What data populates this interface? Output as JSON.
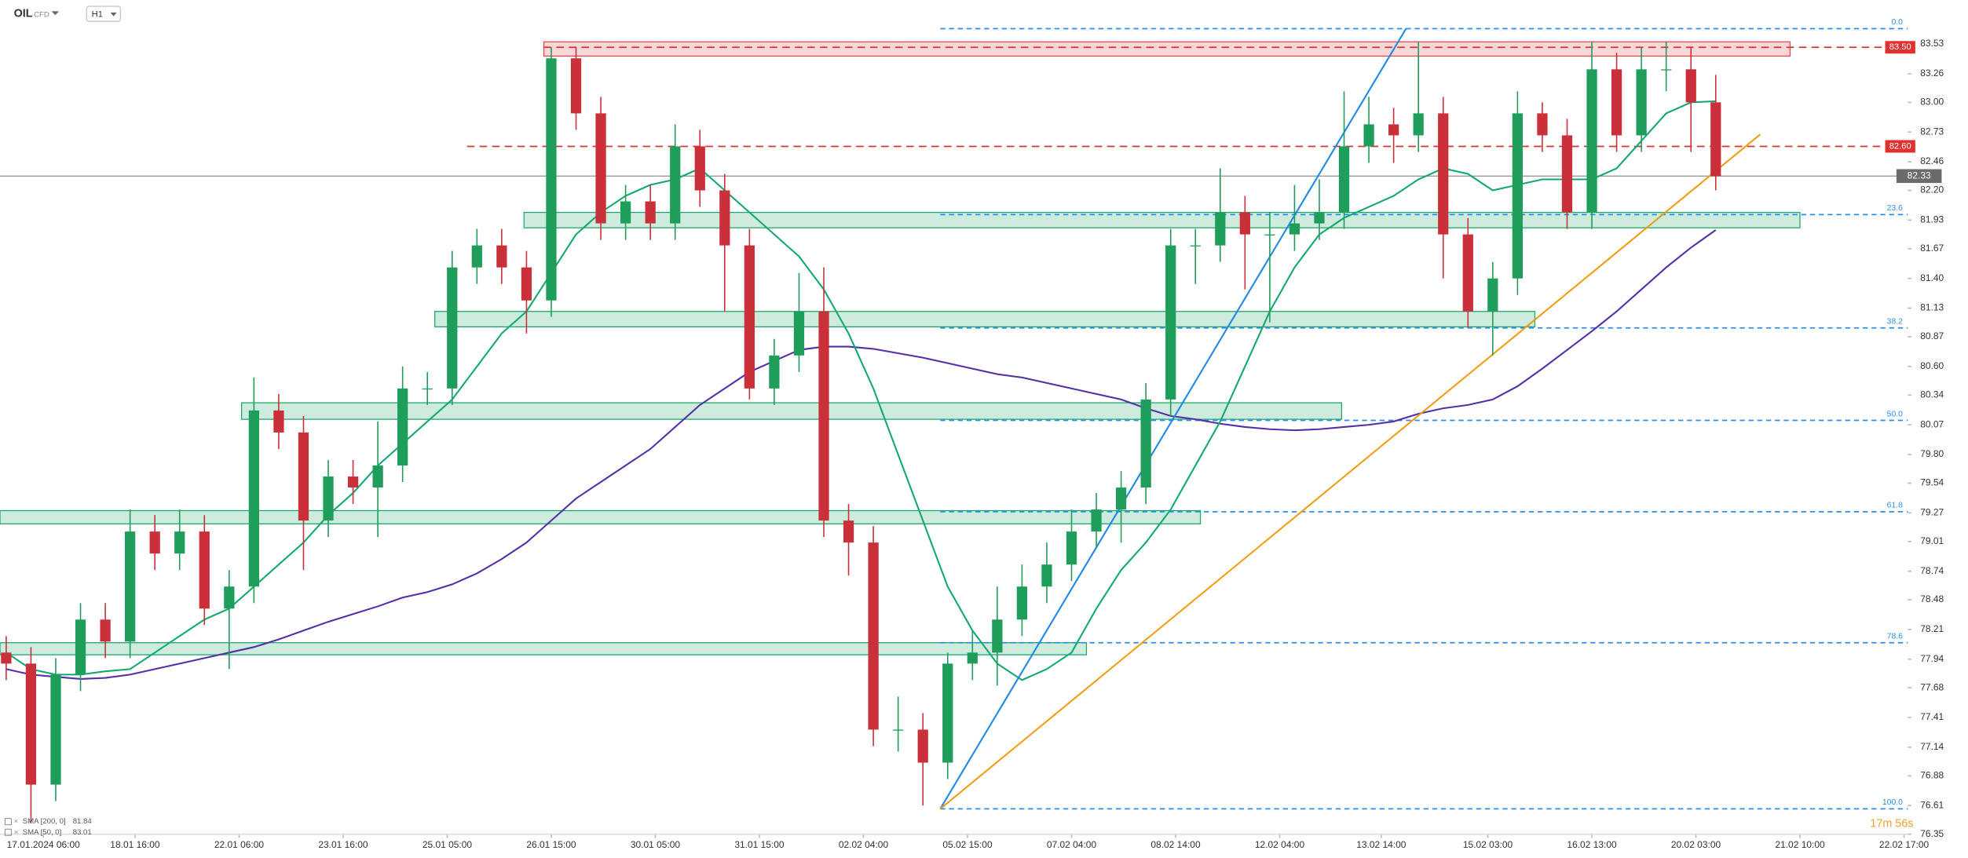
{
  "header": {
    "symbol": "OIL",
    "instrument_type": "CFD",
    "timeframe": "H1"
  },
  "chart_data": {
    "type": "candlestick",
    "xlim": [
      -0.25,
      76.75
    ],
    "xticks": [
      {
        "value": 1.5,
        "label": "17.01.2024 06:00"
      },
      {
        "value": 5.2,
        "label": "18.01 16:00"
      },
      {
        "value": 9.4,
        "label": "22.01 06:00"
      },
      {
        "value": 13.6,
        "label": "23.01 16:00"
      },
      {
        "value": 17.8,
        "label": "25.01 05:00"
      },
      {
        "value": 22.0,
        "label": "26.01 15:00"
      },
      {
        "value": 26.2,
        "label": "30.01 05:00"
      },
      {
        "value": 30.4,
        "label": "31.01 15:00"
      },
      {
        "value": 34.6,
        "label": "02.02 04:00"
      },
      {
        "value": 38.8,
        "label": "05.02 15:00"
      },
      {
        "value": 43.0,
        "label": "07.02 04:00"
      },
      {
        "value": 47.2,
        "label": "08.02 14:00"
      },
      {
        "value": 51.4,
        "label": "12.02 04:00"
      },
      {
        "value": 55.5,
        "label": "13.02 14:00"
      },
      {
        "value": 59.8,
        "label": "15.02 03:00"
      },
      {
        "value": 64.0,
        "label": "16.02 13:00"
      },
      {
        "value": 68.2,
        "label": "20.02 03:00"
      },
      {
        "value": 72.4,
        "label": "21.02 10:00"
      },
      {
        "value": 76.6,
        "label": "22.02 17:00"
      }
    ],
    "ylim": [
      76.35,
      83.93
    ],
    "yticks": [
      83.53,
      83.26,
      {
        "value": 83.0,
        "label": "83.00"
      },
      82.73,
      82.46,
      {
        "value": 82.2,
        "label": "82.20"
      },
      81.93,
      81.67,
      {
        "value": 81.4,
        "label": "81.40"
      },
      81.13,
      80.87,
      {
        "value": 80.6,
        "label": "80.60"
      },
      80.34,
      80.07,
      {
        "value": 79.8,
        "label": "79.80"
      },
      79.54,
      79.27,
      79.01,
      78.74,
      78.48,
      78.21,
      77.94,
      77.68,
      77.41,
      77.14,
      76.88,
      76.61,
      76.35
    ],
    "up_color": "#1e9e5a",
    "down_color": "#c9303a",
    "open": [
      78.0,
      77.9,
      76.8,
      77.8,
      78.3,
      78.1,
      79.1,
      78.9,
      79.1,
      78.4,
      78.6,
      80.2,
      80.0,
      79.2,
      79.6,
      79.5,
      79.7,
      80.4,
      80.4,
      81.5,
      81.7,
      81.5,
      81.2,
      83.4,
      82.9,
      81.9,
      82.1,
      81.9,
      82.6,
      82.2,
      81.7,
      80.4,
      80.7,
      81.1,
      79.2,
      79.0,
      77.3,
      77.3,
      77.0,
      77.9,
      78.0,
      78.3,
      78.6,
      78.8,
      79.1,
      79.3,
      79.5,
      80.3,
      81.7,
      81.7,
      82.0,
      81.8,
      81.8,
      81.9,
      82.0,
      82.6,
      82.8,
      82.7,
      82.9,
      81.8,
      81.1,
      81.4,
      82.9,
      82.7,
      82.0,
      83.3,
      82.7,
      83.3,
      83.3,
      83.0
    ],
    "high": [
      78.15,
      78.05,
      77.95,
      78.45,
      78.45,
      79.3,
      79.25,
      79.3,
      79.25,
      78.75,
      80.5,
      80.35,
      80.15,
      79.75,
      79.75,
      80.1,
      80.6,
      80.55,
      81.65,
      81.85,
      81.85,
      81.65,
      83.5,
      83.5,
      83.05,
      82.25,
      82.25,
      82.8,
      82.75,
      82.35,
      81.85,
      80.85,
      81.45,
      81.5,
      79.35,
      79.15,
      77.6,
      77.45,
      78.0,
      78.2,
      78.6,
      78.8,
      79.0,
      79.3,
      79.45,
      79.65,
      80.45,
      81.85,
      81.85,
      82.4,
      82.15,
      82.0,
      82.25,
      82.3,
      83.1,
      83.05,
      82.95,
      83.55,
      83.05,
      81.95,
      81.55,
      83.1,
      83.0,
      82.85,
      83.55,
      83.45,
      83.5,
      83.55,
      83.5,
      83.25
    ],
    "low": [
      77.75,
      76.45,
      76.65,
      77.65,
      77.95,
      77.95,
      78.75,
      78.75,
      78.25,
      77.85,
      78.45,
      79.85,
      78.75,
      79.05,
      79.35,
      79.05,
      79.55,
      80.25,
      80.25,
      81.35,
      81.35,
      80.9,
      81.05,
      82.75,
      81.75,
      81.75,
      81.75,
      81.75,
      82.05,
      81.1,
      80.3,
      80.25,
      80.55,
      79.05,
      78.7,
      77.15,
      77.1,
      76.61,
      76.85,
      77.75,
      77.7,
      78.15,
      78.45,
      78.65,
      78.95,
      79.0,
      79.35,
      80.15,
      81.35,
      81.55,
      81.3,
      81.0,
      81.65,
      81.75,
      81.85,
      82.45,
      82.45,
      82.55,
      81.4,
      80.95,
      80.7,
      81.25,
      82.55,
      81.85,
      81.85,
      82.55,
      82.55,
      83.1,
      82.55,
      82.2
    ],
    "close": [
      77.9,
      76.8,
      77.8,
      78.3,
      78.1,
      79.1,
      78.9,
      79.1,
      78.4,
      78.6,
      80.2,
      80.0,
      79.2,
      79.6,
      79.5,
      79.7,
      80.4,
      80.4,
      81.5,
      81.7,
      81.5,
      81.2,
      83.4,
      82.9,
      81.9,
      82.1,
      81.9,
      82.6,
      82.2,
      81.7,
      80.4,
      80.7,
      81.1,
      79.2,
      79.0,
      77.3,
      77.3,
      77.0,
      77.9,
      78.0,
      78.3,
      78.6,
      78.8,
      79.1,
      79.3,
      79.5,
      80.3,
      81.7,
      81.7,
      82.0,
      81.8,
      81.8,
      81.9,
      82.0,
      82.6,
      82.8,
      82.7,
      82.9,
      81.8,
      81.1,
      81.4,
      82.9,
      82.7,
      82.0,
      83.3,
      82.7,
      83.3,
      83.3,
      83.0,
      82.33
    ],
    "series": [
      {
        "name": "SMA [200, 0]",
        "color": "#5330a8",
        "values": [
          77.85,
          77.8,
          77.78,
          77.76,
          77.77,
          77.8,
          77.85,
          77.9,
          77.95,
          78.0,
          78.05,
          78.12,
          78.2,
          78.28,
          78.35,
          78.42,
          78.5,
          78.55,
          78.62,
          78.72,
          78.85,
          79.0,
          79.2,
          79.4,
          79.55,
          79.7,
          79.85,
          80.05,
          80.25,
          80.4,
          80.55,
          80.65,
          80.75,
          80.78,
          80.78,
          80.76,
          80.72,
          80.68,
          80.63,
          80.58,
          80.53,
          80.5,
          80.45,
          80.4,
          80.35,
          80.3,
          80.22,
          80.15,
          80.12,
          80.08,
          80.05,
          80.03,
          80.02,
          80.03,
          80.05,
          80.07,
          80.1,
          80.17,
          80.22,
          80.25,
          80.3,
          80.42,
          80.58,
          80.75,
          80.92,
          81.1,
          81.3,
          81.5,
          81.68,
          81.84
        ]
      },
      {
        "name": "SMA [50, 0]",
        "color": "#12a870",
        "values": [
          78.0,
          77.85,
          77.8,
          77.8,
          77.83,
          77.85,
          78.0,
          78.15,
          78.3,
          78.4,
          78.6,
          78.8,
          79.0,
          79.25,
          79.45,
          79.7,
          79.9,
          80.1,
          80.3,
          80.6,
          80.9,
          81.1,
          81.45,
          81.8,
          82.0,
          82.15,
          82.25,
          82.3,
          82.4,
          82.2,
          82.0,
          81.8,
          81.6,
          81.3,
          80.9,
          80.4,
          79.8,
          79.2,
          78.6,
          78.2,
          77.9,
          77.75,
          77.85,
          78.0,
          78.4,
          78.75,
          79.0,
          79.3,
          79.7,
          80.1,
          80.6,
          81.1,
          81.5,
          81.8,
          81.95,
          82.05,
          82.15,
          82.3,
          82.4,
          82.35,
          82.2,
          82.25,
          82.3,
          82.3,
          82.3,
          82.4,
          82.65,
          82.9,
          83.0,
          83.01
        ]
      }
    ],
    "zones": [
      {
        "from": 21.7,
        "to": 72.0,
        "ylow": 83.42,
        "yhigh": 83.55,
        "color": "#e04848"
      },
      {
        "from": 20.9,
        "to": 72.4,
        "ylow": 81.86,
        "yhigh": 82.0,
        "color": "#1fa86a"
      },
      {
        "from": 17.3,
        "to": 61.7,
        "ylow": 80.96,
        "yhigh": 81.1,
        "color": "#1fa86a"
      },
      {
        "from": 9.5,
        "to": 53.9,
        "ylow": 80.12,
        "yhigh": 80.27,
        "color": "#1fa86a"
      },
      {
        "from": -0.25,
        "to": 48.2,
        "ylow": 79.17,
        "yhigh": 79.29,
        "color": "#1fa86a"
      },
      {
        "from": -0.25,
        "to": 43.6,
        "ylow": 77.98,
        "yhigh": 78.09,
        "color": "#1fa86a"
      }
    ],
    "levels": [
      {
        "value": 83.5,
        "label": "83.50",
        "from": 21.7,
        "color": "#e03131"
      },
      {
        "value": 82.6,
        "label": "82.60",
        "from": 18.6,
        "color": "#e03131"
      }
    ],
    "last_price": 82.33,
    "fibonacci": {
      "from": 37.7,
      "color": "#2b8ef0",
      "levels": [
        {
          "label": "0.0",
          "price": 83.67
        },
        {
          "label": "23.6",
          "price": 81.98
        },
        {
          "label": "38.2",
          "price": 80.95
        },
        {
          "label": "50.0",
          "price": 80.11
        },
        {
          "label": "61.8",
          "price": 79.28
        },
        {
          "label": "78.6",
          "price": 78.09
        },
        {
          "label": "100.0",
          "price": 76.58
        }
      ]
    },
    "trendlines": [
      {
        "color": "#1e88e5",
        "points": [
          [
            37.7,
            76.58
          ],
          [
            56.5,
            83.67
          ]
        ]
      },
      {
        "color": "#f39c12",
        "points": [
          [
            37.7,
            76.58
          ],
          [
            70.8,
            82.71
          ]
        ]
      }
    ],
    "countdown": "17m 56s"
  }
}
